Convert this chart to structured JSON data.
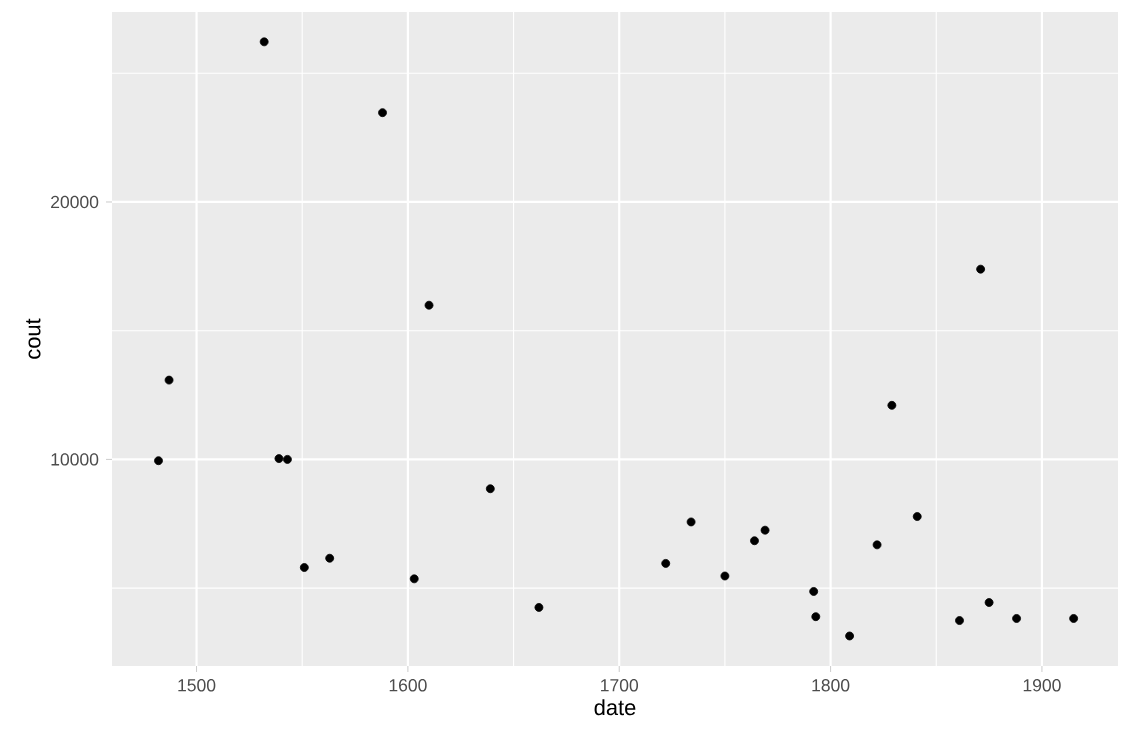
{
  "chart_data": {
    "type": "scatter",
    "xlabel": "date",
    "ylabel": "cout",
    "x": [
      1482,
      1487,
      1532,
      1539,
      1543,
      1551,
      1563,
      1588,
      1603,
      1610,
      1639,
      1662,
      1722,
      1734,
      1750,
      1764,
      1769,
      1792,
      1793,
      1809,
      1822,
      1829,
      1841,
      1861,
      1871,
      1875,
      1888,
      1915
    ],
    "values": [
      9950,
      13080,
      26220,
      10030,
      10000,
      5800,
      6160,
      23470,
      5360,
      15990,
      8860,
      4250,
      5960,
      7570,
      5470,
      6840,
      7250,
      4870,
      3890,
      3140,
      6680,
      12100,
      7780,
      3740,
      17390,
      4440,
      3820,
      3820
    ],
    "color": "#000000",
    "grid": true,
    "xlim": [
      1460,
      1936
    ],
    "ylim": [
      1974,
      27380
    ],
    "xticks": [
      1500,
      1600,
      1700,
      1800,
      1900
    ],
    "yticks": [
      10000,
      20000
    ]
  }
}
